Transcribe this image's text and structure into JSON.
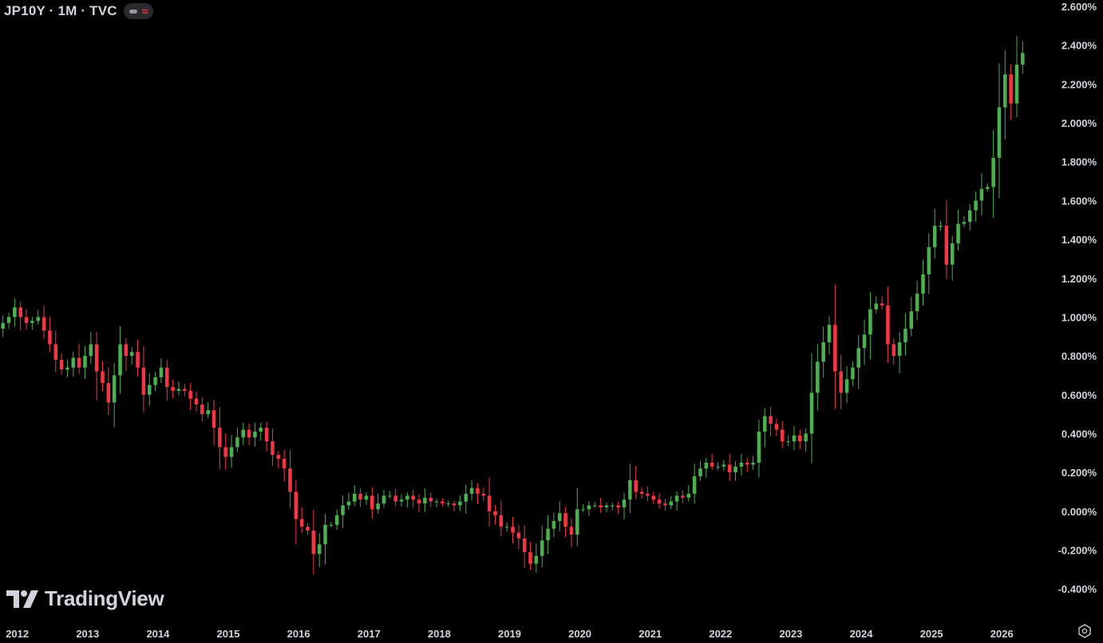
{
  "header": {
    "title": "JP10Y · 1M · TVC",
    "pill_dash_icon": "indicator-visibility-icon",
    "pill_wave_glyph": "≈"
  },
  "watermark": {
    "text": "TradingView",
    "icon": "tradingview-logo-icon"
  },
  "settings": {
    "icon": "chart-settings-icon"
  },
  "colors": {
    "up": "#4caf50",
    "down": "#f23645",
    "background": "#000000",
    "text": "#d1d4dc"
  },
  "chart_data": {
    "type": "candlestick",
    "title": "JP10Y · 1M · TVC",
    "y_unit": "%",
    "ylim": [
      -0.45,
      2.62
    ],
    "y_ticks": [
      "2.600%",
      "2.400%",
      "2.200%",
      "2.000%",
      "1.800%",
      "1.600%",
      "1.400%",
      "1.200%",
      "1.000%",
      "0.800%",
      "0.600%",
      "0.400%",
      "0.200%",
      "0.000%",
      "-0.200%",
      "-0.400%"
    ],
    "x_ticks": [
      "2012",
      "2013",
      "2014",
      "2015",
      "2016",
      "2017",
      "2018",
      "2019",
      "2020",
      "2021",
      "2022",
      "2023",
      "2024",
      "2025",
      "2026"
    ],
    "grid": false,
    "legend": "none",
    "start": "2012-01",
    "interval": "1M",
    "close": [
      0.97,
      1.0,
      1.05,
      1.0,
      0.97,
      0.98,
      1.0,
      0.93,
      0.86,
      0.78,
      0.73,
      0.74,
      0.79,
      0.74,
      0.8,
      0.86,
      0.72,
      0.66,
      0.56,
      0.7,
      0.86,
      0.8,
      0.82,
      0.74,
      0.6,
      0.65,
      0.69,
      0.74,
      0.64,
      0.62,
      0.63,
      0.62,
      0.58,
      0.55,
      0.5,
      0.52,
      0.43,
      0.33,
      0.28,
      0.33,
      0.38,
      0.42,
      0.38,
      0.41,
      0.43,
      0.36,
      0.29,
      0.27,
      0.22,
      0.1,
      -0.04,
      -0.08,
      -0.1,
      -0.22,
      -0.17,
      -0.07,
      -0.07,
      -0.02,
      0.03,
      0.05,
      0.09,
      0.06,
      0.08,
      0.01,
      0.04,
      0.08,
      0.08,
      0.05,
      0.06,
      0.08,
      0.06,
      0.04,
      0.07,
      0.05,
      0.05,
      0.04,
      0.04,
      0.03,
      0.05,
      0.09,
      0.12,
      0.09,
      0.08,
      0.0,
      -0.02,
      -0.08,
      -0.08,
      -0.11,
      -0.14,
      -0.21,
      -0.27,
      -0.23,
      -0.15,
      -0.09,
      -0.05,
      -0.01,
      -0.08,
      -0.12,
      0.01,
      0.01,
      0.03,
      0.03,
      0.02,
      0.03,
      0.03,
      0.02,
      0.06,
      0.16,
      0.1,
      0.09,
      0.08,
      0.06,
      0.04,
      0.03,
      0.05,
      0.08,
      0.07,
      0.09,
      0.18,
      0.22,
      0.25,
      0.23,
      0.23,
      0.24,
      0.2,
      0.23,
      0.25,
      0.24,
      0.25,
      0.41,
      0.49,
      0.45,
      0.42,
      0.36,
      0.36,
      0.39,
      0.36,
      0.4,
      0.61,
      0.77,
      0.87,
      0.96,
      0.72,
      0.61,
      0.68,
      0.74,
      0.84,
      0.91,
      1.04,
      1.07,
      1.06,
      0.86,
      0.8,
      0.87,
      0.94,
      1.03,
      1.12,
      1.22,
      1.36,
      1.47,
      1.47,
      1.27,
      1.38,
      1.48,
      1.49,
      1.55,
      1.6,
      1.66,
      1.67,
      1.82,
      2.08,
      2.25,
      2.1,
      2.3,
      2.36
    ]
  }
}
